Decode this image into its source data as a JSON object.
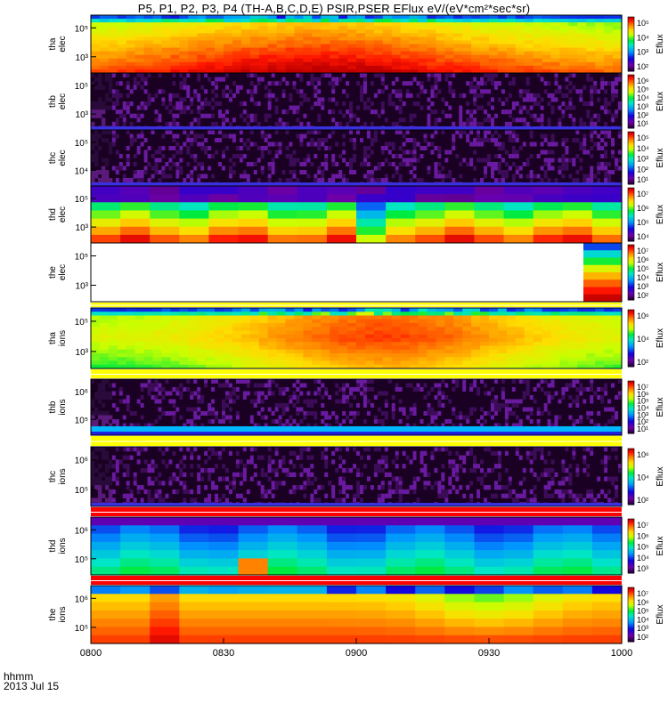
{
  "title": "P5, P1, P2, P3, P4 (TH-A,B,C,D,E) PSIR,PSER EFlux eV/(eV*cm²*sec*sr)",
  "footer": {
    "line1": "hhmm",
    "line2": "2013 Jul 15"
  },
  "chart_data": {
    "type": "heatmap",
    "x_ticks": [
      "0800",
      "0830",
      "0900",
      "0930",
      "1000"
    ],
    "x_range": [
      "08:00",
      "10:00"
    ],
    "colorbar_unit": "Eflux",
    "panels": [
      {
        "id": "tha-elec",
        "label": [
          "tha",
          "elec"
        ],
        "yticks": [
          "10⁵",
          "10³"
        ],
        "cbar_ticks": [
          "10⁵",
          "10⁴",
          "10³",
          "10²"
        ],
        "colorscale": "rainbow",
        "pattern": "smooth-elec"
      },
      {
        "id": "thb-elec",
        "label": [
          "thb",
          "elec"
        ],
        "yticks": [
          "10⁵",
          "10³"
        ],
        "cbar_ticks": [
          "10⁶",
          "10⁵",
          "10⁴",
          "10³",
          "10²",
          "10¹"
        ],
        "colorscale": "rainbow",
        "pattern": "noise"
      },
      {
        "id": "thc-elec",
        "label": [
          "thc",
          "elec"
        ],
        "yticks": [
          "10⁵",
          "10⁴"
        ],
        "cbar_ticks": [
          "10⁵",
          "10⁴",
          "10³",
          "10²",
          "10¹"
        ],
        "colorscale": "rainbow",
        "pattern": "noise"
      },
      {
        "id": "thd-elec",
        "label": [
          "thd",
          "elec"
        ],
        "yticks": [
          "10⁵",
          "10³"
        ],
        "cbar_ticks": [
          "10⁷",
          "10⁶",
          "10⁵",
          "10⁴"
        ],
        "colorscale": "rainbow",
        "pattern": "blocky-elec"
      },
      {
        "id": "the-elec",
        "label": [
          "the",
          "elec"
        ],
        "yticks": [
          "10⁵",
          "10³"
        ],
        "cbar_ticks": [
          "10⁷",
          "10⁶",
          "10⁵",
          "10⁴",
          "10³",
          "10²"
        ],
        "colorscale": "rainbow",
        "pattern": "late"
      },
      {
        "id": "tha-ions",
        "label": [
          "tha",
          "ions"
        ],
        "yticks": [
          "10⁵",
          "10³"
        ],
        "cbar_ticks": [
          "10⁶",
          "10⁴",
          "10²"
        ],
        "colorscale": "rainbow",
        "pattern": "smooth-ions"
      },
      {
        "id": "thb-ions",
        "label": [
          "thb",
          "ions"
        ],
        "yticks": [
          "10⁶",
          "10⁵"
        ],
        "cbar_ticks": [
          "10⁷",
          "10⁶",
          "10⁵",
          "10⁴",
          "10³",
          "10²",
          "10¹"
        ],
        "colorscale": "rainbow",
        "pattern": "noise-band"
      },
      {
        "id": "thc-ions",
        "label": [
          "thc",
          "ions"
        ],
        "yticks": [
          "10⁶",
          "10⁵"
        ],
        "cbar_ticks": [
          "10⁶",
          "10⁴",
          "10²"
        ],
        "colorscale": "rainbow",
        "pattern": "noise"
      },
      {
        "id": "thd-ions",
        "label": [
          "thd",
          "ions"
        ],
        "yticks": [
          "10⁶",
          "10⁵"
        ],
        "cbar_ticks": [
          "10⁷",
          "10⁶",
          "10⁵",
          "10⁴",
          "10³"
        ],
        "colorscale": "rainbow",
        "pattern": "blocky-ions"
      },
      {
        "id": "the-ions",
        "label": [
          "the",
          "ions"
        ],
        "yticks": [
          "10⁶",
          "10⁵"
        ],
        "cbar_ticks": [
          "10⁷",
          "10⁶",
          "10⁵",
          "10⁴",
          "10³",
          "10²"
        ],
        "colorscale": "rainbow",
        "pattern": "blocky-the"
      }
    ]
  }
}
